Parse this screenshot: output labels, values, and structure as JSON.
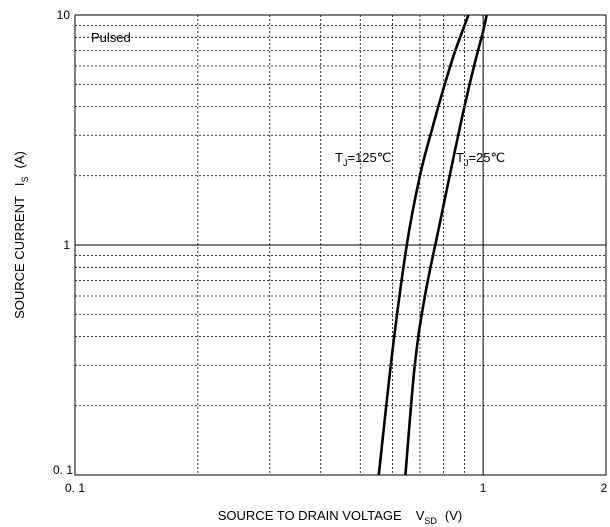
{
  "chart_data": {
    "type": "line",
    "title": "",
    "xlabel": {
      "main": "SOURCE TO DRAIN VOLTAGE",
      "symbol": "V",
      "subscript": "SD",
      "unit": "(V)"
    },
    "ylabel": {
      "main": "SOURCE CURRENT",
      "symbol": "I",
      "subscript": "S",
      "unit": "(A)"
    },
    "x_scale": "log",
    "y_scale": "log",
    "xlim": [
      0.1,
      2
    ],
    "ylim": [
      0.1,
      10
    ],
    "x_ticks": [
      {
        "value": 0.1,
        "label": "0. 1"
      },
      {
        "value": 1,
        "label": "1"
      },
      {
        "value": 2,
        "label": "2"
      }
    ],
    "y_ticks": [
      {
        "value": 0.1,
        "label": "0. 1"
      },
      {
        "value": 1,
        "label": "1"
      },
      {
        "value": 10,
        "label": "10"
      }
    ],
    "grid": true,
    "annotation": "Pulsed",
    "series": [
      {
        "name": "T_J=125℃",
        "label_main": "T",
        "label_sub": "J",
        "label_rest": "=125℃",
        "points": [
          [
            0.555,
            0.1
          ],
          [
            0.6,
            0.35
          ],
          [
            0.65,
            1.0
          ],
          [
            0.7,
            2.0
          ],
          [
            0.75,
            3.2
          ],
          [
            0.8,
            4.8
          ],
          [
            0.85,
            6.8
          ],
          [
            0.9,
            9.0
          ],
          [
            0.92,
            10.0
          ]
        ]
      },
      {
        "name": "T_J=25℃",
        "label_main": "T",
        "label_sub": "J",
        "label_rest": "=25℃",
        "points": [
          [
            0.645,
            0.1
          ],
          [
            0.68,
            0.3
          ],
          [
            0.72,
            0.6
          ],
          [
            0.78,
            1.2
          ],
          [
            0.85,
            2.5
          ],
          [
            0.9,
            4.0
          ],
          [
            0.95,
            6.0
          ],
          [
            1.0,
            8.5
          ],
          [
            1.02,
            10.0
          ]
        ]
      }
    ]
  }
}
